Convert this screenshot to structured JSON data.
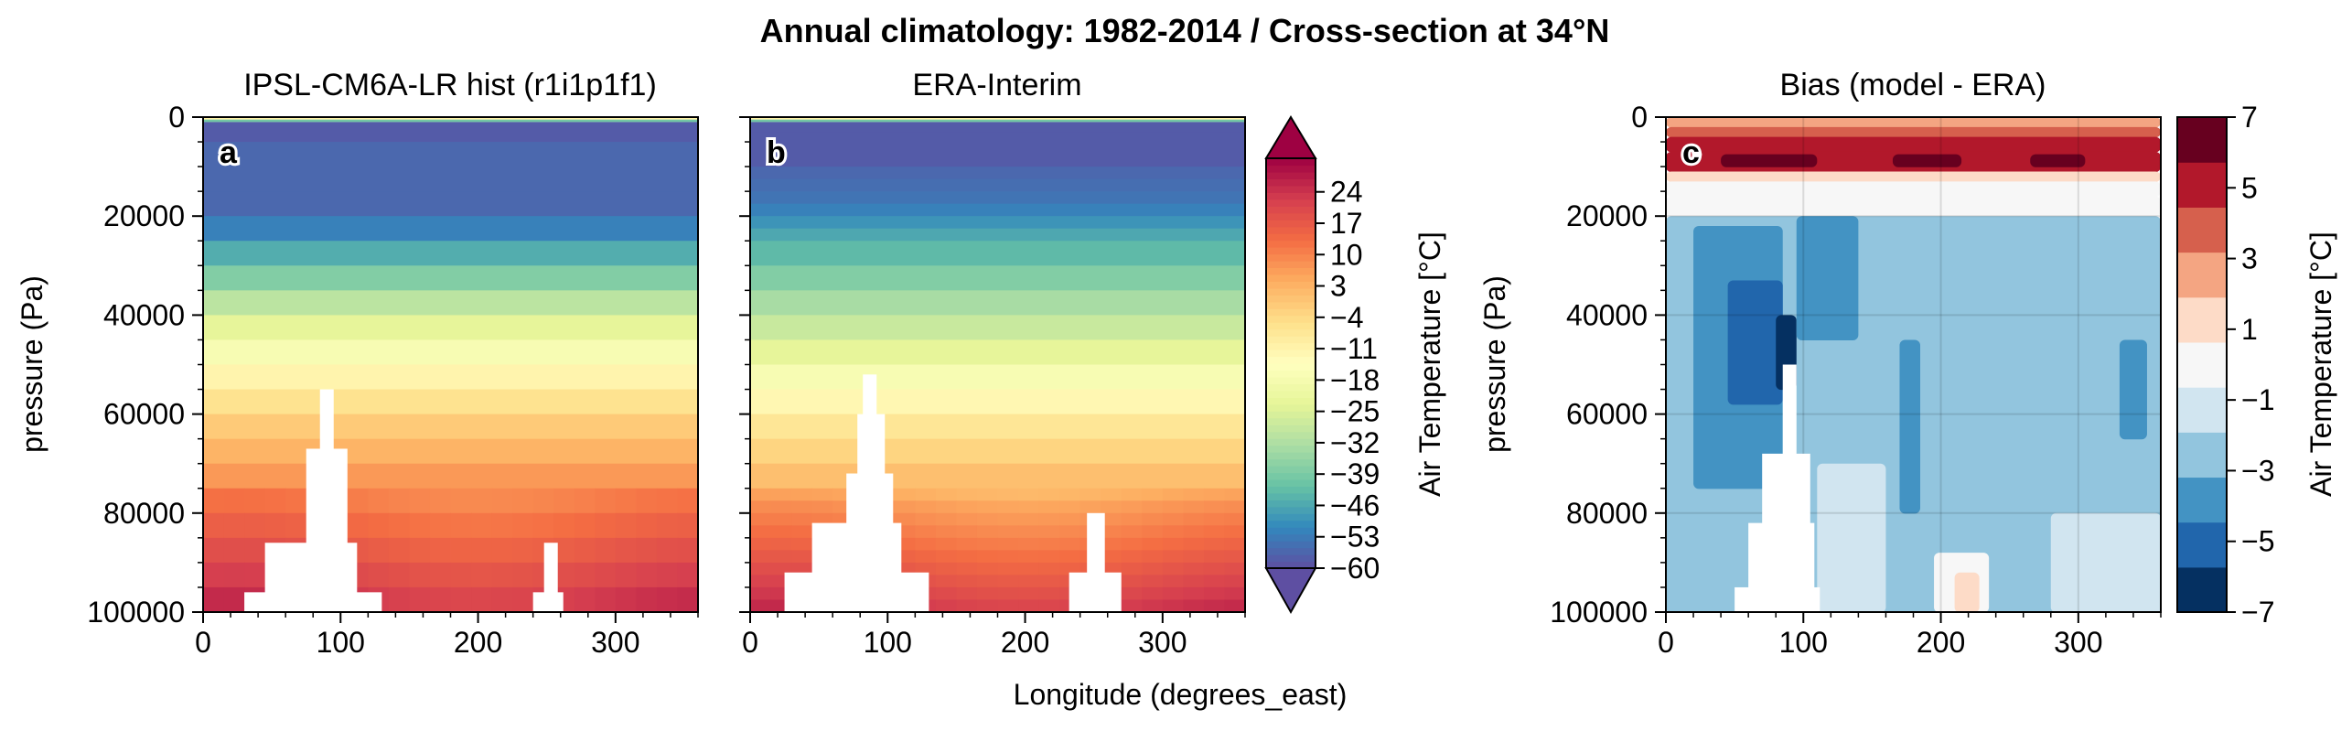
{
  "figure": {
    "suptitle": "Annual climatology: 1982-2014 / Cross-section at 34°N",
    "shared_xlabel": "Longitude (degrees_east)"
  },
  "colors": {
    "spectral": [
      "#5e4fa2",
      "#3288bd",
      "#66c2a5",
      "#abdda4",
      "#e6f598",
      "#ffffbf",
      "#fee08b",
      "#fdae61",
      "#f46d43",
      "#d53e4f",
      "#9e0142"
    ],
    "rdbu_bias": [
      "#053061",
      "#2166ac",
      "#4393c3",
      "#92c5de",
      "#d1e5f0",
      "#f7f7f7",
      "#fddbc7",
      "#f4a582",
      "#d6604d",
      "#b2182b",
      "#67001f"
    ],
    "topography_mask": "#ffffff"
  },
  "chart_data": [
    {
      "type": "heatmap",
      "panel_label": "a",
      "title": "IPSL-CM6A-LR hist (r1i1p1f1)",
      "xlabel": "",
      "ylabel": "pressure (Pa)",
      "xlim": [
        0,
        360
      ],
      "ylim": [
        100000,
        0
      ],
      "xticks": [
        "0",
        "100",
        "200",
        "300"
      ],
      "yticks": [
        "0",
        "20000",
        "40000",
        "60000",
        "80000",
        "100000"
      ],
      "variable": "Air Temperature [°C]",
      "levels_pa": [
        0,
        1000,
        5000,
        10000,
        15000,
        20000,
        25000,
        30000,
        35000,
        40000,
        45000,
        50000,
        55000,
        60000,
        65000,
        70000,
        75000,
        80000,
        85000,
        90000,
        95000,
        100000
      ],
      "level_temperature_c": [
        -20,
        -58,
        -56,
        -56,
        -56,
        -52,
        -45,
        -38,
        -30,
        -23,
        -17,
        -11,
        -6,
        -1,
        3,
        7,
        11,
        14,
        17,
        20,
        23
      ],
      "topography_mask": [
        {
          "lon": [
            85,
            95
          ],
          "top_pa": 55000
        },
        {
          "lon": [
            75,
            105
          ],
          "top_pa": 67000
        },
        {
          "lon": [
            45,
            112
          ],
          "top_pa": 86000
        },
        {
          "lon": [
            30,
            130
          ],
          "top_pa": 96000
        },
        {
          "lon": [
            248,
            258
          ],
          "top_pa": 86000
        },
        {
          "lon": [
            240,
            262
          ],
          "top_pa": 96000
        }
      ]
    },
    {
      "type": "heatmap",
      "panel_label": "b",
      "title": "ERA-Interim",
      "xlabel": "",
      "ylabel": "",
      "xlim": [
        0,
        360
      ],
      "ylim": [
        100000,
        0
      ],
      "xticks": [
        "0",
        "100",
        "200",
        "300"
      ],
      "yticks": [],
      "variable": "Air Temperature [°C]",
      "levels_pa": [
        0,
        1000,
        3000,
        5000,
        7000,
        10000,
        12500,
        15000,
        17500,
        20000,
        22500,
        25000,
        30000,
        35000,
        40000,
        45000,
        50000,
        55000,
        60000,
        65000,
        70000,
        75000,
        77500,
        80000,
        82500,
        85000,
        87500,
        90000,
        92500,
        95000,
        97500,
        100000
      ],
      "level_temperature_c": [
        -20,
        -58,
        -58,
        -58,
        -58,
        -56,
        -55,
        -54,
        -52,
        -49,
        -46,
        -43,
        -38,
        -33,
        -28,
        -23,
        -17,
        -12,
        -7,
        -3,
        1,
        4,
        7,
        9,
        11,
        13,
        15,
        17,
        19,
        21,
        23
      ],
      "topography_mask": [
        {
          "lon": [
            82,
            92
          ],
          "top_pa": 52000
        },
        {
          "lon": [
            78,
            98
          ],
          "top_pa": 60000
        },
        {
          "lon": [
            70,
            104
          ],
          "top_pa": 72000
        },
        {
          "lon": [
            45,
            110
          ],
          "top_pa": 82000
        },
        {
          "lon": [
            25,
            130
          ],
          "top_pa": 92000
        },
        {
          "lon": [
            245,
            258
          ],
          "top_pa": 80000
        },
        {
          "lon": [
            232,
            270
          ],
          "top_pa": 92000
        }
      ]
    },
    {
      "type": "heatmap",
      "panel_label": "c",
      "title": "Bias (model - ERA)",
      "xlabel": "",
      "ylabel": "pressure (Pa)",
      "xlim": [
        0,
        360
      ],
      "ylim": [
        100000,
        0
      ],
      "xticks": [
        "0",
        "100",
        "200",
        "300"
      ],
      "yticks": [
        "0",
        "20000",
        "40000",
        "60000",
        "80000",
        "100000"
      ],
      "variable": "Air Temperature [°C]",
      "contour_levels": [
        -7,
        -6,
        -5,
        -4,
        -3,
        -2,
        -1,
        0,
        1,
        2,
        3,
        4,
        5,
        6,
        7
      ],
      "bias_rows": [
        {
          "pa": [
            0,
            2000
          ],
          "lon": [
            0,
            360
          ],
          "bias": 2.5
        },
        {
          "pa": [
            2000,
            4000
          ],
          "lon": [
            0,
            360
          ],
          "bias": 3.5
        },
        {
          "pa": [
            4000,
            7000
          ],
          "lon": [
            0,
            360
          ],
          "bias": 4.5
        },
        {
          "pa": [
            7000,
            11000
          ],
          "lon": [
            0,
            360
          ],
          "bias": 5.5
        },
        {
          "pa": [
            11000,
            13000
          ],
          "lon": [
            0,
            360
          ],
          "bias": 1.5
        },
        {
          "pa": [
            13000,
            16000
          ],
          "lon": [
            0,
            360
          ],
          "bias": 0.5
        },
        {
          "pa": [
            16000,
            20000
          ],
          "lon": [
            0,
            360
          ],
          "bias": -0.5
        },
        {
          "pa": [
            20000,
            100000
          ],
          "lon": [
            0,
            360
          ],
          "bias": -2.5
        }
      ],
      "bias_patches": [
        {
          "pa": [
            7500,
            10000
          ],
          "lon": [
            40,
            110
          ],
          "bias": 6.5
        },
        {
          "pa": [
            7500,
            10000
          ],
          "lon": [
            165,
            215
          ],
          "bias": 6.5
        },
        {
          "pa": [
            7500,
            10000
          ],
          "lon": [
            265,
            305
          ],
          "bias": 6.5
        },
        {
          "pa": [
            22000,
            75000
          ],
          "lon": [
            20,
            85
          ],
          "bias": -3.5
        },
        {
          "pa": [
            33000,
            58000
          ],
          "lon": [
            45,
            85
          ],
          "bias": -4.5
        },
        {
          "pa": [
            40000,
            55000
          ],
          "lon": [
            80,
            95
          ],
          "bias": -6.5
        },
        {
          "pa": [
            20000,
            45000
          ],
          "lon": [
            95,
            140
          ],
          "bias": -3.5
        },
        {
          "pa": [
            45000,
            80000
          ],
          "lon": [
            170,
            185
          ],
          "bias": -3.5
        },
        {
          "pa": [
            45000,
            65000
          ],
          "lon": [
            330,
            350
          ],
          "bias": -3.5
        },
        {
          "pa": [
            70000,
            100000
          ],
          "lon": [
            110,
            160
          ],
          "bias": -1.5
        },
        {
          "pa": [
            80000,
            100000
          ],
          "lon": [
            280,
            360
          ],
          "bias": -1.5
        },
        {
          "pa": [
            88000,
            100000
          ],
          "lon": [
            195,
            235
          ],
          "bias": 0.5
        },
        {
          "pa": [
            92000,
            100000
          ],
          "lon": [
            210,
            228
          ],
          "bias": 1.5
        }
      ],
      "topography_mask": [
        {
          "lon": [
            85,
            95
          ],
          "top_pa": 50000
        },
        {
          "lon": [
            70,
            105
          ],
          "top_pa": 68000
        },
        {
          "lon": [
            60,
            108
          ],
          "top_pa": 82000
        },
        {
          "lon": [
            50,
            112
          ],
          "top_pa": 95000
        }
      ]
    }
  ],
  "colorbars": {
    "temperature": {
      "label": "Air Temperature [°C]",
      "ticks": [
        "24",
        "17",
        "10",
        "3",
        "−4",
        "−11",
        "−18",
        "−25",
        "−32",
        "−39",
        "−46",
        "−53",
        "−60"
      ],
      "tick_values": [
        24,
        17,
        10,
        3,
        -4,
        -11,
        -18,
        -25,
        -32,
        -39,
        -46,
        -53,
        -60
      ],
      "range": [
        -60,
        31.5
      ],
      "extend": "both"
    },
    "bias": {
      "label": "Air Temperature [°C]",
      "ticks": [
        "7",
        "5",
        "3",
        "1",
        "−1",
        "−3",
        "−5",
        "−7"
      ],
      "tick_values": [
        7,
        5,
        3,
        1,
        -1,
        -3,
        -5,
        -7
      ],
      "range": [
        -7,
        7
      ],
      "extend": "neither"
    }
  }
}
